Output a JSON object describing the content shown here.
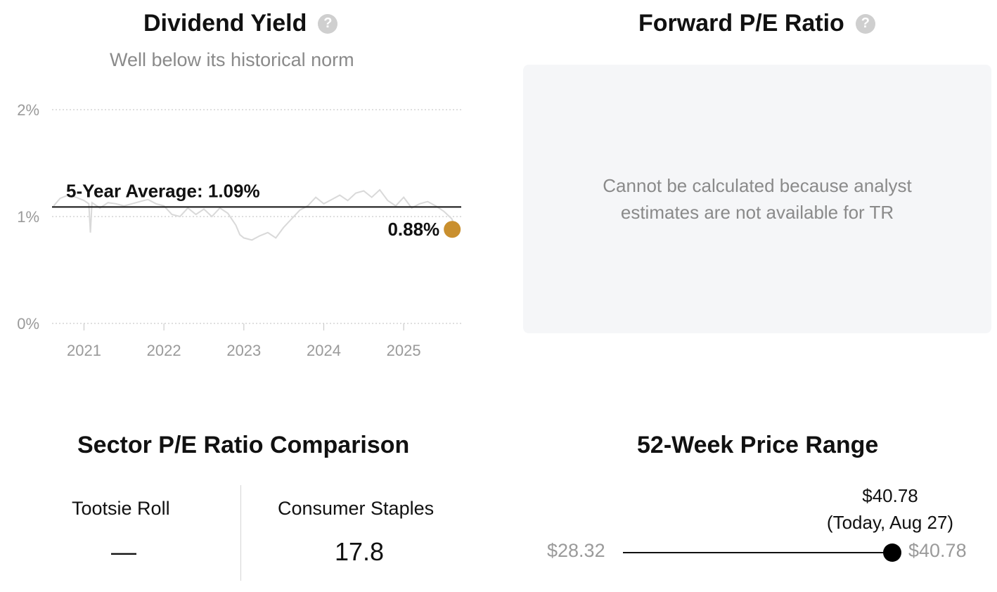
{
  "dividend_yield": {
    "title": "Dividend Yield",
    "subtitle": "Well below its historical norm",
    "help_icon": "question-circle-icon"
  },
  "forward_pe": {
    "title": "Forward P/E Ratio",
    "help_icon": "question-circle-icon",
    "message": "Cannot be calculated because analyst estimates are not available for TR"
  },
  "sector_pe": {
    "title": "Sector P/E Ratio Comparison",
    "company_label": "Tootsie Roll",
    "company_value": "—",
    "sector_label": "Consumer Staples",
    "sector_value": "17.8"
  },
  "price_range": {
    "title": "52-Week Price Range",
    "low": "$28.32",
    "high": "$40.78",
    "current_value": "$40.78",
    "current_label": "(Today, Aug 27)",
    "current_position_fraction": 1.0
  },
  "colors": {
    "current_dot": "#c98f2e",
    "yield_line": "#d9d9d9",
    "average_line": "#111111",
    "grid": "#cccccc"
  },
  "chart_data": {
    "type": "line",
    "title": "",
    "xlabel": "",
    "ylabel": "",
    "ylim": [
      0,
      2
    ],
    "xlim": [
      2020.6,
      2025.72
    ],
    "yticks": [
      "0%",
      "1%",
      "2%"
    ],
    "ytick_values": [
      0,
      1,
      2
    ],
    "xticks": [
      "2021",
      "2022",
      "2023",
      "2024",
      "2025"
    ],
    "xtick_values": [
      2021,
      2022,
      2023,
      2024,
      2025
    ],
    "grid": true,
    "average": {
      "label": "5-Year Average: 1.09%",
      "value": 1.09
    },
    "current": {
      "label": "0.88%",
      "x": 2025.66,
      "value": 0.88
    },
    "series": [
      {
        "x": [
          2020.62,
          2020.7,
          2020.8,
          2020.9,
          2021.0,
          2021.06,
          2021.08,
          2021.1,
          2021.2,
          2021.3,
          2021.4,
          2021.5,
          2021.6,
          2021.7,
          2021.8,
          2021.9,
          2022.0,
          2022.1,
          2022.2,
          2022.3,
          2022.4,
          2022.5,
          2022.6,
          2022.7,
          2022.8,
          2022.9,
          2022.95,
          2023.0,
          2023.1,
          2023.2,
          2023.3,
          2023.4,
          2023.5,
          2023.6,
          2023.7,
          2023.8,
          2023.9,
          2024.0,
          2024.1,
          2024.2,
          2024.3,
          2024.4,
          2024.5,
          2024.6,
          2024.7,
          2024.8,
          2024.9,
          2025.0,
          2025.1,
          2025.2,
          2025.3,
          2025.4,
          2025.5,
          2025.6,
          2025.66
        ],
        "values": [
          1.1,
          1.17,
          1.2,
          1.18,
          1.15,
          1.12,
          0.85,
          1.13,
          1.08,
          1.13,
          1.12,
          1.1,
          1.12,
          1.14,
          1.16,
          1.12,
          1.1,
          1.02,
          1.0,
          1.08,
          1.02,
          1.07,
          1.0,
          1.08,
          1.03,
          0.92,
          0.83,
          0.8,
          0.78,
          0.82,
          0.85,
          0.8,
          0.9,
          0.98,
          1.06,
          1.1,
          1.18,
          1.12,
          1.16,
          1.2,
          1.15,
          1.22,
          1.24,
          1.18,
          1.25,
          1.15,
          1.1,
          1.18,
          1.08,
          1.12,
          1.14,
          1.1,
          1.05,
          0.98,
          0.88
        ]
      }
    ]
  }
}
